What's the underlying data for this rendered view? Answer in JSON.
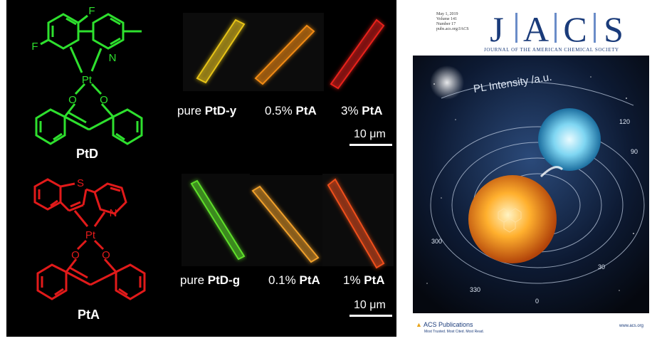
{
  "figure": {
    "molecules": {
      "top_name": "PtD",
      "bottom_name": "PtA",
      "atoms": {
        "F": "F",
        "N": "N",
        "Pt": "Pt",
        "O": "O",
        "S": "S"
      }
    },
    "top_row": {
      "captions": [
        {
          "prefix": "pure ",
          "bold": "PtD-y"
        },
        {
          "prefix": "0.5% ",
          "bold": "PtA"
        },
        {
          "prefix": "3% ",
          "bold": "PtA"
        }
      ],
      "scale_label": "10 μm",
      "crystal_colors": [
        "#e8c419",
        "#f08a12",
        "#e8201a"
      ]
    },
    "bottom_row": {
      "captions": [
        {
          "prefix": "pure ",
          "bold": "PtD-g"
        },
        {
          "prefix": "0.1% ",
          "bold": "PtA"
        },
        {
          "prefix": "1% ",
          "bold": "PtA"
        }
      ],
      "scale_label": "10 μm",
      "crystal_colors": [
        "#5fe02a",
        "#f0a02a",
        "#f0501a"
      ]
    },
    "colors": {
      "green": "#2ee02e",
      "red": "#e11a1a"
    }
  },
  "cover": {
    "issue_lines": [
      "May 1, 2019",
      "Volume 141",
      "Number 17",
      "pubs.acs.org/JACS"
    ],
    "logo_letters": [
      "J",
      "A",
      "C",
      "S"
    ],
    "subtitle": "JOURNAL OF THE AMERICAN CHEMICAL SOCIETY",
    "art_label": "PL Intensity /a.u.",
    "art_ticks": [
      "0",
      "30",
      "300",
      "330",
      "90",
      "120"
    ],
    "footer_logo": "ACS Publications",
    "footer_tagline": "Most Trusted. Most Cited. Most Read.",
    "footer_url": "www.acs.org",
    "brand_color": "#1a3b7a"
  }
}
